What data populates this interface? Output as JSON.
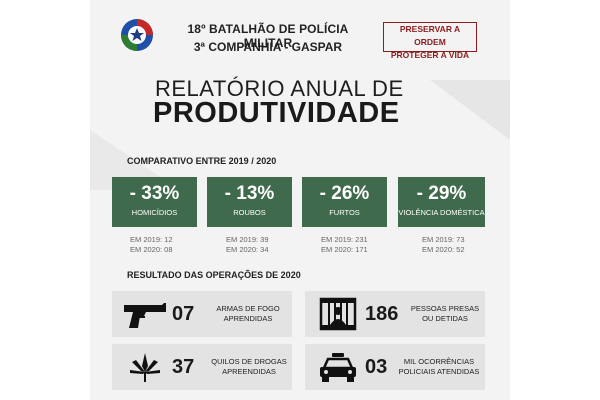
{
  "header": {
    "line1": "18º BATALHÃO DE POLÍCIA MILITAR",
    "line2": "3ª COMPANHIA  - GASPAR",
    "slogan_line1": "PRESERVAR A ORDEM",
    "slogan_line2": "PROTEGER A VIDA",
    "logo_icon": "police-emblem-icon"
  },
  "title": {
    "line1": "RELATÓRIO ANUAL DE",
    "line2": "PRODUTIVIDADE"
  },
  "comparison": {
    "heading": "COMPARATIVO ENTRE 2019 / 2020",
    "items": [
      {
        "pct": "- 33%",
        "label": "HOMICÍDIOS",
        "y2019": "EM 2019: 12",
        "y2020": "EM 2020: 08"
      },
      {
        "pct": "- 13%",
        "label": "ROUBOS",
        "y2019": "EM 2019: 39",
        "y2020": "EM 2020: 34"
      },
      {
        "pct": "- 26%",
        "label": "FURTOS",
        "y2019": "EM 2019: 231",
        "y2020": "EM 2020: 171"
      },
      {
        "pct": "- 29%",
        "label": "VIOLÊNCIA DOMÉSTICA",
        "y2019": "EM 2019: 73",
        "y2020": "EM 2020: 52"
      }
    ]
  },
  "operations": {
    "heading": "RESULTADO DAS OPERAÇÕES DE 2020",
    "items": [
      {
        "num": "07",
        "line1": "ARMAS DE FOGO",
        "line2": "APRENDIDAS",
        "icon": "pistol-icon"
      },
      {
        "num": "186",
        "line1": "PESSOAS PRESAS",
        "line2": "OU DETIDAS",
        "icon": "jail-icon"
      },
      {
        "num": "37",
        "line1": "QUILOS DE DROGAS",
        "line2": "APREENDIDAS",
        "icon": "cannabis-leaf-icon"
      },
      {
        "num": "03",
        "line1": "MIL OCORRÊNCIAS",
        "line2": "POLICIAIS ATENDIDAS",
        "icon": "police-car-icon"
      }
    ]
  },
  "colors": {
    "accent_green": "#3f6b4c",
    "slogan_red": "#8b1d1d",
    "op_box": "#e3e3e3"
  }
}
